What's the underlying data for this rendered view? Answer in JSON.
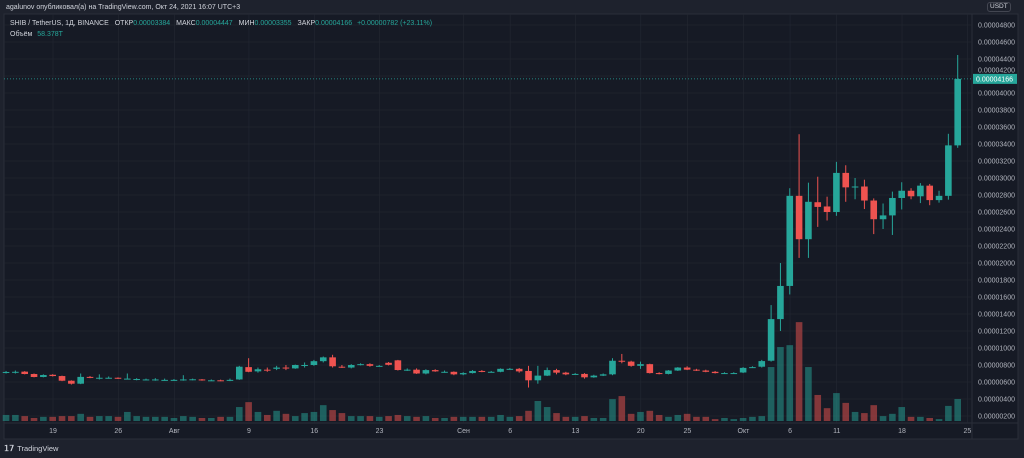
{
  "header": {
    "published": "agalunov опубликовал(а) на TradingView.com, Окт 24, 2021 16:07 UTC+3"
  },
  "legend": {
    "symbol": "SHIB / TetherUS, 1Д, BINANCE",
    "open_label": "ОТКР",
    "open": "0.00003384",
    "high_label": "МАКС",
    "high": "0.00004447",
    "low_label": "МИН",
    "low": "0.00003355",
    "close_label": "ЗАКР",
    "close": "0.00004166",
    "change": "+0.00000782 (+23.11%)",
    "volume_label": "Объём",
    "volume": "58.378T"
  },
  "price_axis": {
    "currency": "USDT",
    "last_price": "0.00004166",
    "labels": [
      "0.00000200",
      "0.00000400",
      "0.00000600",
      "0.00000800",
      "0.00001000",
      "0.00001200",
      "0.00001400",
      "0.00001600",
      "0.00001800",
      "0.00002000",
      "0.00002200",
      "0.00002400",
      "0.00002600",
      "0.00002800",
      "0.00003000",
      "0.00003200",
      "0.00003400",
      "0.00003600",
      "0.00003800",
      "0.00004000",
      "0.00004200",
      "0.00004400",
      "0.00004600",
      "0.00004800"
    ]
  },
  "time_axis": [
    {
      "label": "19",
      "day": 0
    },
    {
      "label": "26",
      "day": 7
    },
    {
      "label": "Авг",
      "day": 13
    },
    {
      "label": "9",
      "day": 21
    },
    {
      "label": "16",
      "day": 28
    },
    {
      "label": "23",
      "day": 35
    },
    {
      "label": "Сен",
      "day": 44
    },
    {
      "label": "6",
      "day": 49
    },
    {
      "label": "13",
      "day": 56
    },
    {
      "label": "20",
      "day": 63
    },
    {
      "label": "25",
      "day": 68
    },
    {
      "label": "Окт",
      "day": 74
    },
    {
      "label": "6",
      "day": 79
    },
    {
      "label": "11",
      "day": 84
    },
    {
      "label": "18",
      "day": 91
    },
    {
      "label": "25",
      "day": 98
    }
  ],
  "footer": {
    "brand": "TradingView"
  },
  "colors": {
    "up": "#26a69a",
    "down": "#ef5350",
    "bg": "#161a25",
    "grid": "#242833"
  },
  "chart_data": {
    "type": "candlestick",
    "unit": "1e-8 USDT",
    "ohlcv": [
      [
        715,
        730,
        700,
        718,
        16
      ],
      [
        718,
        735,
        700,
        720,
        16
      ],
      [
        722,
        728,
        690,
        694,
        13
      ],
      [
        694,
        700,
        655,
        659,
        8
      ],
      [
        659,
        690,
        655,
        682,
        11
      ],
      [
        685,
        692,
        665,
        670,
        11
      ],
      [
        670,
        675,
        610,
        615,
        13
      ],
      [
        615,
        620,
        570,
        580,
        13
      ],
      [
        580,
        700,
        575,
        660,
        19
      ],
      [
        660,
        670,
        645,
        650,
        11
      ],
      [
        650,
        690,
        630,
        650,
        13
      ],
      [
        650,
        665,
        640,
        650,
        13
      ],
      [
        650,
        655,
        635,
        640,
        11
      ],
      [
        640,
        700,
        630,
        640,
        24
      ],
      [
        635,
        645,
        620,
        635,
        13
      ],
      [
        630,
        640,
        620,
        630,
        11
      ],
      [
        630,
        645,
        615,
        630,
        11
      ],
      [
        625,
        640,
        615,
        625,
        11
      ],
      [
        625,
        635,
        615,
        625,
        8
      ],
      [
        625,
        680,
        615,
        630,
        13
      ],
      [
        630,
        640,
        620,
        632,
        11
      ],
      [
        630,
        635,
        615,
        620,
        8
      ],
      [
        620,
        630,
        612,
        620,
        8
      ],
      [
        620,
        628,
        610,
        615,
        11
      ],
      [
        615,
        640,
        610,
        625,
        11
      ],
      [
        630,
        790,
        625,
        780,
        37
      ],
      [
        775,
        880,
        715,
        720,
        50
      ],
      [
        725,
        770,
        710,
        750,
        24
      ],
      [
        745,
        770,
        720,
        740,
        16
      ],
      [
        755,
        790,
        740,
        770,
        27
      ],
      [
        770,
        800,
        740,
        760,
        19
      ],
      [
        760,
        805,
        755,
        800,
        13
      ],
      [
        800,
        830,
        770,
        800,
        21
      ],
      [
        800,
        860,
        790,
        845,
        24
      ],
      [
        845,
        900,
        830,
        890,
        42
      ],
      [
        890,
        920,
        770,
        785,
        29
      ],
      [
        780,
        800,
        765,
        775,
        21
      ],
      [
        770,
        810,
        760,
        800,
        13
      ],
      [
        805,
        820,
        795,
        810,
        13
      ],
      [
        810,
        820,
        780,
        790,
        13
      ],
      [
        790,
        800,
        780,
        790,
        11
      ],
      [
        826,
        835,
        795,
        802,
        13
      ],
      [
        855,
        860,
        735,
        741,
        16
      ],
      [
        745,
        760,
        730,
        745,
        13
      ],
      [
        745,
        760,
        695,
        700,
        11
      ],
      [
        700,
        750,
        690,
        740,
        13
      ],
      [
        740,
        750,
        720,
        725,
        8
      ],
      [
        720,
        735,
        710,
        720,
        8
      ],
      [
        720,
        725,
        680,
        690,
        11
      ],
      [
        690,
        715,
        680,
        705,
        11
      ],
      [
        705,
        740,
        700,
        730,
        11
      ],
      [
        730,
        740,
        715,
        720,
        11
      ],
      [
        720,
        730,
        712,
        720,
        11
      ],
      [
        720,
        760,
        715,
        755,
        16
      ],
      [
        755,
        765,
        745,
        755,
        11
      ],
      [
        755,
        765,
        710,
        725,
        13
      ],
      [
        730,
        790,
        535,
        620,
        27
      ],
      [
        620,
        790,
        580,
        675,
        53
      ],
      [
        675,
        770,
        670,
        740,
        37
      ],
      [
        740,
        755,
        690,
        710,
        21
      ],
      [
        710,
        720,
        680,
        690,
        11
      ],
      [
        695,
        705,
        685,
        695,
        11
      ],
      [
        695,
        705,
        640,
        655,
        13
      ],
      [
        655,
        685,
        650,
        675,
        8
      ],
      [
        675,
        700,
        670,
        690,
        8
      ],
      [
        690,
        880,
        680,
        850,
        58
      ],
      [
        850,
        930,
        820,
        840,
        66
      ],
      [
        840,
        850,
        780,
        790,
        19
      ],
      [
        790,
        840,
        755,
        810,
        24
      ],
      [
        810,
        815,
        700,
        705,
        27
      ],
      [
        705,
        715,
        690,
        695,
        16
      ],
      [
        695,
        740,
        690,
        735,
        11
      ],
      [
        735,
        775,
        730,
        770,
        16
      ],
      [
        770,
        785,
        740,
        745,
        19
      ],
      [
        745,
        755,
        730,
        735,
        11
      ],
      [
        735,
        745,
        715,
        720,
        11
      ],
      [
        720,
        730,
        700,
        705,
        5
      ],
      [
        705,
        715,
        695,
        705,
        8
      ],
      [
        705,
        715,
        695,
        705,
        5
      ],
      [
        712,
        775,
        705,
        766,
        8
      ],
      [
        775,
        785,
        765,
        775,
        11
      ],
      [
        780,
        860,
        770,
        846,
        13
      ],
      [
        850,
        1505,
        840,
        1340,
        143
      ],
      [
        1340,
        2000,
        1200,
        1730,
        196
      ],
      [
        1730,
        2880,
        1630,
        2790,
        201
      ],
      [
        2790,
        3515,
        2060,
        2280,
        262
      ],
      [
        2280,
        2945,
        2060,
        2720,
        143
      ],
      [
        2715,
        3015,
        2425,
        2660,
        69
      ],
      [
        2665,
        2780,
        2500,
        2600,
        34
      ],
      [
        2600,
        3190,
        2555,
        3060,
        74
      ],
      [
        3060,
        3150,
        2720,
        2890,
        48
      ],
      [
        2900,
        3000,
        2750,
        2900,
        24
      ],
      [
        2900,
        2980,
        2635,
        2735,
        21
      ],
      [
        2735,
        2760,
        2340,
        2515,
        42
      ],
      [
        2515,
        2700,
        2400,
        2560,
        13
      ],
      [
        2560,
        2840,
        2330,
        2765,
        19
      ],
      [
        2765,
        2950,
        2630,
        2850,
        37
      ],
      [
        2850,
        2880,
        2750,
        2785,
        11
      ],
      [
        2785,
        2940,
        2705,
        2910,
        11
      ],
      [
        2910,
        2930,
        2680,
        2740,
        8
      ],
      [
        2740,
        2850,
        2710,
        2790,
        5
      ],
      [
        2790,
        3520,
        2745,
        3384,
        40
      ],
      [
        3384,
        4447,
        3355,
        4166,
        58.378
      ]
    ]
  }
}
